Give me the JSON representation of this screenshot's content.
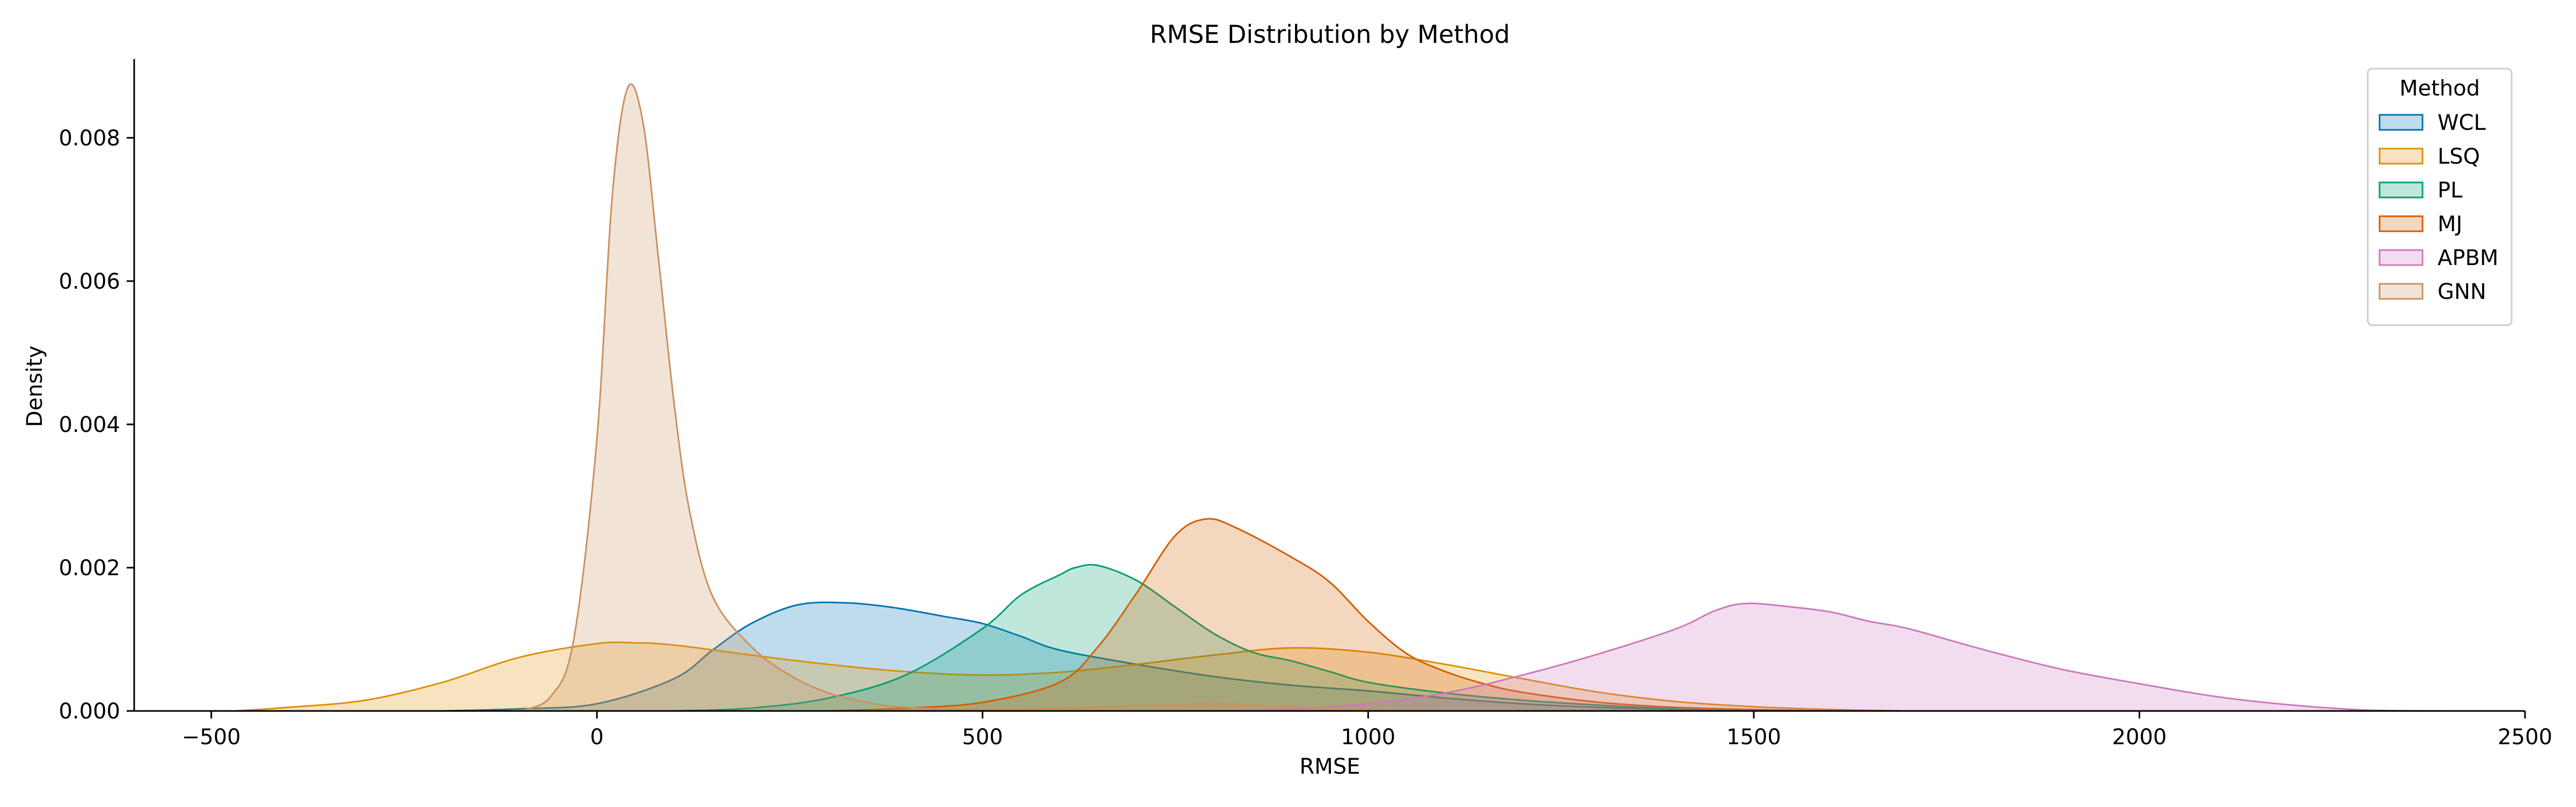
{
  "chart_data": {
    "type": "area",
    "title": "RMSE Distribution by Method",
    "xlabel": "RMSE",
    "ylabel": "Density",
    "xlim": [
      -600,
      2500
    ],
    "ylim": [
      0,
      0.0091
    ],
    "xticks": [
      -500,
      0,
      500,
      1000,
      1500,
      2000,
      2500
    ],
    "xtick_labels": [
      "−500",
      "0",
      "500",
      "1000",
      "1500",
      "2000",
      "2500"
    ],
    "yticks": [
      0,
      0.002,
      0.004,
      0.006,
      0.008
    ],
    "ytick_labels": [
      "0.000",
      "0.002",
      "0.004",
      "0.006",
      "0.008"
    ],
    "grid": false,
    "legend": {
      "title": "Method",
      "placement": "top-right"
    },
    "series": [
      {
        "name": "WCL",
        "color": "#0173b2",
        "points": [
          [
            -200,
            0
          ],
          [
            -100,
            3e-05
          ],
          [
            0,
            0.0001
          ],
          [
            100,
            0.00045
          ],
          [
            150,
            0.00085
          ],
          [
            200,
            0.00122
          ],
          [
            260,
            0.00148
          ],
          [
            320,
            0.00151
          ],
          [
            380,
            0.00145
          ],
          [
            450,
            0.00132
          ],
          [
            500,
            0.00122
          ],
          [
            550,
            0.00104
          ],
          [
            600,
            0.00085
          ],
          [
            700,
            0.00065
          ],
          [
            800,
            0.00048
          ],
          [
            900,
            0.00036
          ],
          [
            1000,
            0.00028
          ],
          [
            1100,
            0.00018
          ],
          [
            1200,
            0.0001
          ],
          [
            1300,
            5e-05
          ],
          [
            1400,
            2e-05
          ],
          [
            1500,
            0
          ]
        ]
      },
      {
        "name": "LSQ",
        "color": "#de8f05",
        "points": [
          [
            -470,
            0
          ],
          [
            -400,
            5e-05
          ],
          [
            -300,
            0.00015
          ],
          [
            -200,
            0.0004
          ],
          [
            -100,
            0.00075
          ],
          [
            0,
            0.00094
          ],
          [
            50,
            0.00095
          ],
          [
            100,
            0.00092
          ],
          [
            200,
            0.00078
          ],
          [
            300,
            0.00065
          ],
          [
            400,
            0.00055
          ],
          [
            500,
            0.0005
          ],
          [
            600,
            0.00054
          ],
          [
            700,
            0.00065
          ],
          [
            800,
            0.00078
          ],
          [
            900,
            0.00088
          ],
          [
            1000,
            0.00082
          ],
          [
            1100,
            0.00065
          ],
          [
            1200,
            0.00045
          ],
          [
            1300,
            0.00026
          ],
          [
            1400,
            0.00013
          ],
          [
            1500,
            6e-05
          ],
          [
            1600,
            2e-05
          ],
          [
            1700,
            0
          ]
        ]
      },
      {
        "name": "PL",
        "color": "#029e73",
        "points": [
          [
            100,
            0
          ],
          [
            200,
            4e-05
          ],
          [
            300,
            0.00018
          ],
          [
            400,
            0.0005
          ],
          [
            500,
            0.00115
          ],
          [
            550,
            0.00162
          ],
          [
            600,
            0.0019
          ],
          [
            620,
            0.002
          ],
          [
            650,
            0.00203
          ],
          [
            700,
            0.00182
          ],
          [
            750,
            0.00145
          ],
          [
            800,
            0.00108
          ],
          [
            850,
            0.00082
          ],
          [
            900,
            0.0007
          ],
          [
            950,
            0.00055
          ],
          [
            1000,
            0.0004
          ],
          [
            1100,
            0.00025
          ],
          [
            1200,
            0.00015
          ],
          [
            1300,
            8e-05
          ],
          [
            1400,
            3e-05
          ],
          [
            1500,
            0
          ]
        ]
      },
      {
        "name": "MJ",
        "color": "#d55e00",
        "points": [
          [
            300,
            0
          ],
          [
            400,
            4e-05
          ],
          [
            500,
            0.00012
          ],
          [
            600,
            0.0004
          ],
          [
            650,
            0.0009
          ],
          [
            700,
            0.00165
          ],
          [
            750,
            0.00245
          ],
          [
            790,
            0.00268
          ],
          [
            830,
            0.00255
          ],
          [
            900,
            0.00215
          ],
          [
            950,
            0.0018
          ],
          [
            1000,
            0.00125
          ],
          [
            1050,
            0.0008
          ],
          [
            1100,
            0.00055
          ],
          [
            1150,
            0.00038
          ],
          [
            1200,
            0.00026
          ],
          [
            1300,
            0.00012
          ],
          [
            1400,
            5e-05
          ],
          [
            1500,
            2e-05
          ],
          [
            1600,
            0
          ]
        ]
      },
      {
        "name": "APBM",
        "color": "#cc78bc",
        "points": [
          [
            800,
            0
          ],
          [
            900,
            3e-05
          ],
          [
            1000,
            0.0001
          ],
          [
            1100,
            0.00025
          ],
          [
            1200,
            0.0005
          ],
          [
            1300,
            0.0008
          ],
          [
            1400,
            0.00115
          ],
          [
            1450,
            0.0014
          ],
          [
            1490,
            0.0015
          ],
          [
            1550,
            0.00145
          ],
          [
            1600,
            0.00138
          ],
          [
            1650,
            0.00125
          ],
          [
            1700,
            0.00115
          ],
          [
            1800,
            0.00085
          ],
          [
            1900,
            0.00058
          ],
          [
            2000,
            0.00038
          ],
          [
            2100,
            0.0002
          ],
          [
            2200,
            8e-05
          ],
          [
            2300,
            1e-05
          ],
          [
            2400,
            0
          ]
        ]
      },
      {
        "name": "GNN",
        "color": "#ca9161",
        "points": [
          [
            -100,
            0
          ],
          [
            -60,
            0.0002
          ],
          [
            -30,
            0.001
          ],
          [
            0,
            0.0038
          ],
          [
            20,
            0.0072
          ],
          [
            40,
            0.0087
          ],
          [
            60,
            0.0082
          ],
          [
            80,
            0.0063
          ],
          [
            100,
            0.0043
          ],
          [
            120,
            0.0028
          ],
          [
            150,
            0.0016
          ],
          [
            200,
            0.0009
          ],
          [
            250,
            0.0005
          ],
          [
            300,
            0.00025
          ],
          [
            350,
            0.00012
          ],
          [
            400,
            5e-05
          ],
          [
            500,
            2e-05
          ],
          [
            600,
            4e-05
          ],
          [
            700,
            7e-05
          ],
          [
            800,
            0.0001
          ],
          [
            900,
            6e-05
          ],
          [
            1000,
            2e-05
          ],
          [
            1100,
            0
          ]
        ]
      }
    ]
  }
}
